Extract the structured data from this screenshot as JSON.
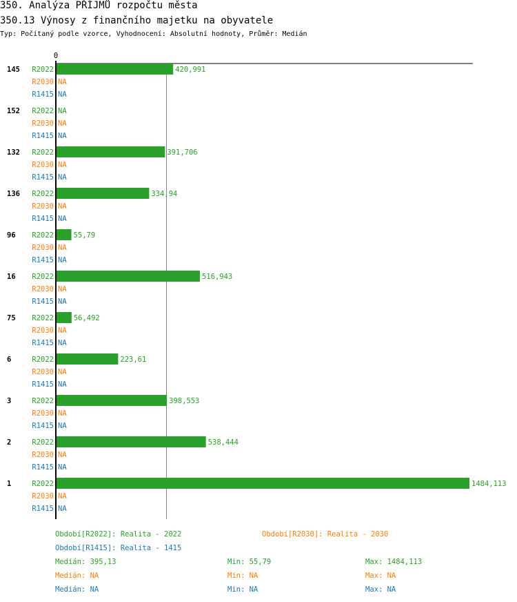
{
  "title": "350. Analýza PŘÍJMŮ rozpočtu města",
  "subtitle": "350.13 Výnosy z finančního majetku na obyvatele",
  "info": "Typ: Počítaný podle vzorce, Vyhodnocení: Absolutní hodnoty, Průměr: Medián",
  "colors": {
    "R2022": "#2ca02c",
    "R2030": "#ff7f0e",
    "R1415": "#1f77b4"
  },
  "chart_data": {
    "type": "bar",
    "orientation": "horizontal",
    "xlim": [
      0,
      1484.113
    ],
    "x_tick_labels": [
      "0"
    ],
    "categories": [
      "145",
      "152",
      "132",
      "136",
      "96",
      "16",
      "75",
      "6",
      "3",
      "2",
      "1"
    ],
    "series": [
      {
        "name": "R2022",
        "values": [
          420.991,
          null,
          391.706,
          334.94,
          55.79,
          516.943,
          56.492,
          223.61,
          398.553,
          538.444,
          1484.113
        ],
        "labels": [
          "420,991",
          "NA",
          "391,706",
          "334,94",
          "55,79",
          "516,943",
          "56,492",
          "223,61",
          "398,553",
          "538,444",
          "1484,113"
        ]
      },
      {
        "name": "R2030",
        "values": [
          null,
          null,
          null,
          null,
          null,
          null,
          null,
          null,
          null,
          null,
          null
        ],
        "labels": [
          "NA",
          "NA",
          "NA",
          "NA",
          "NA",
          "NA",
          "NA",
          "NA",
          "NA",
          "NA",
          "NA"
        ]
      },
      {
        "name": "R1415",
        "values": [
          null,
          null,
          null,
          null,
          null,
          null,
          null,
          null,
          null,
          null,
          null
        ],
        "labels": [
          "NA",
          "NA",
          "NA",
          "NA",
          "NA",
          "NA",
          "NA",
          "NA",
          "NA",
          "NA",
          "NA"
        ]
      }
    ],
    "median_line": 395.13
  },
  "legend": {
    "periods": [
      "Období[R2022]: Realita - 2022",
      "Období[R2030]: Realita - 2030",
      "Období[R1415]: Realita - 1415"
    ],
    "stats": [
      [
        "Medián: 395,13",
        "Min: 55,79",
        "Max: 1484,113"
      ],
      [
        "Medián: NA",
        "Min: NA",
        "Max: NA"
      ],
      [
        "Medián: NA",
        "Min: NA",
        "Max: NA"
      ]
    ]
  }
}
